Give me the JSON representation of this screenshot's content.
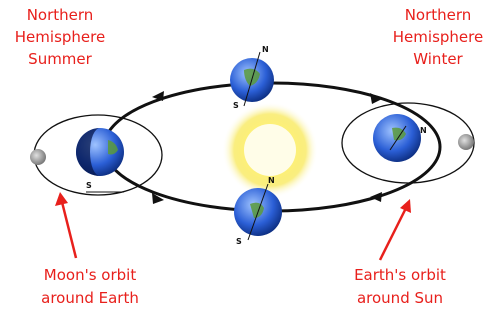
{
  "labels": {
    "top_left": [
      "Northern",
      "Hemisphere",
      "Summer"
    ],
    "top_right": [
      "Northern",
      "Hemisphere",
      "Winter"
    ],
    "bottom_left": [
      "Moon's orbit",
      "around Earth"
    ],
    "bottom_right": [
      "Earth's orbit",
      "around Sun"
    ]
  },
  "poles": {
    "left_s": "S",
    "top_n": "N",
    "top_s": "S",
    "right_n": "N",
    "bottom_n": "N",
    "bottom_s": "S"
  }
}
